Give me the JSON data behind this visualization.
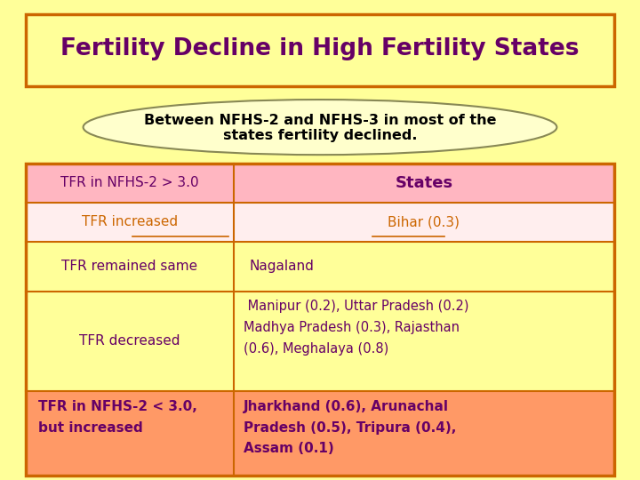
{
  "title": "Fertility Decline in High Fertility States",
  "subtitle_line1": "Between NFHS-2 and NFHS-3 in most of the",
  "subtitle_line2": "states fertility declined.",
  "bg_color": "#FFFF99",
  "title_color": "#660066",
  "title_bg": "#FFFF99",
  "title_border": "#CC6600",
  "table_border": "#CC6600",
  "col1_header": "TFR in NFHS-2 > 3.0",
  "col2_header": "States",
  "header_bg": "#FFB6C1",
  "header_text_color": "#660066",
  "row2_col1": "TFR increased",
  "row2_col2": "Bihar (0.3)",
  "row2_bg": "#FFEEEE",
  "row2_text_color": "#CC6600",
  "row3_col1": "TFR remained same",
  "row3_col2": "Nagaland",
  "row3_bg": "#FFFF99",
  "row3_text_color": "#660066",
  "row4_col1": "TFR decreased",
  "row4_col2_line1": " Manipur (0.2), Uttar Pradesh (0.2)",
  "row4_col2_line2": "Madhya Pradesh (0.3), Rajasthan",
  "row4_col2_line3": "(0.6), Meghalaya (0.8)",
  "row4_bg": "#FFFF99",
  "row4_text_color": "#660066",
  "row5_col1_line1": "TFR in NFHS-2 < 3.0,",
  "row5_col1_line2": "but increased",
  "row5_col2_line1": "Jharkhand (0.6), Arunachal",
  "row5_col2_line2": "Pradesh (0.5), Tripura (0.4),",
  "row5_col2_line3": "Assam (0.1)",
  "row5_bg": "#FF9966",
  "row5_text_color": "#660066"
}
